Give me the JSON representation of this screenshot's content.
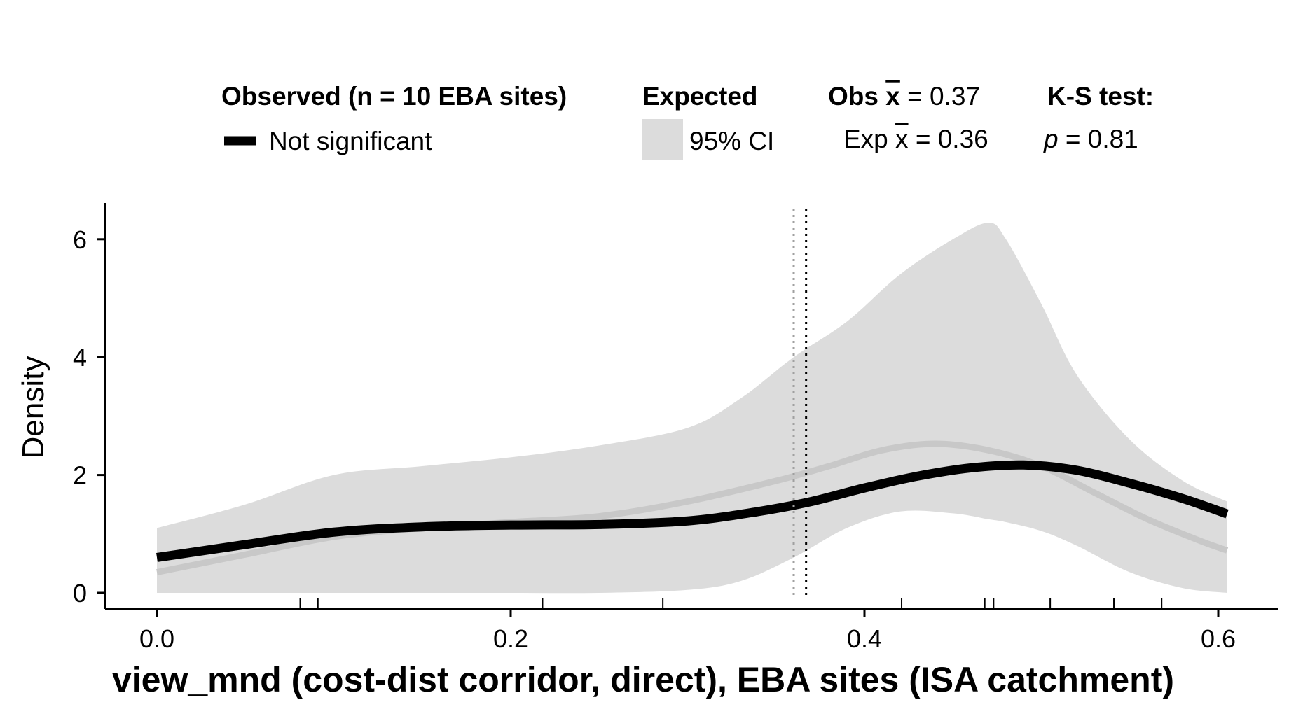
{
  "legend": {
    "observed_header": "Observed (n = 10 EBA sites)",
    "observed_item": "Not significant",
    "expected_header": "Expected",
    "expected_item": "95% CI",
    "obs_mean_prefix": "Obs ",
    "obs_mean_symbol": "x",
    "obs_mean_value": " = 0.37",
    "exp_mean_prefix": "Exp ",
    "exp_mean_symbol": "x",
    "exp_mean_value": " = 0.36",
    "ks_header": "K-S test:",
    "ks_p_symbol": "p",
    "ks_p_value": " = 0.81"
  },
  "colors": {
    "observed_line": "#000000",
    "expected_mean_line": "#c8c8c8",
    "ci_band": "#dcdcdc",
    "exp_mean_vline": "#a0a0a0",
    "obs_mean_vline": "#000000"
  },
  "chart_data": {
    "type": "line",
    "title": "",
    "xlabel": "view_mnd (cost-dist corridor, direct), EBA sites (ISA catchment)",
    "ylabel": "Density",
    "xlim": [
      -0.03,
      0.64
    ],
    "ylim": [
      -0.3,
      6.6
    ],
    "x_ticks": [
      0.0,
      0.2,
      0.4,
      0.6
    ],
    "x_tick_labels": [
      "0.0",
      "0.2",
      "0.4",
      "0.6"
    ],
    "y_ticks": [
      0,
      2,
      4,
      6
    ],
    "y_tick_labels": [
      "0",
      "2",
      "4",
      "6"
    ],
    "grid": false,
    "legend_position": "top",
    "rug": [
      0.081,
      0.091,
      0.218,
      0.286,
      0.421,
      0.468,
      0.473,
      0.505,
      0.541,
      0.568
    ],
    "vlines": [
      {
        "name": "Exp mean",
        "x": 0.36,
        "style": "dotted"
      },
      {
        "name": "Obs mean",
        "x": 0.367,
        "style": "dotted"
      }
    ],
    "series": [
      {
        "name": "Not significant",
        "role": "observed",
        "x": [
          0.0,
          0.05,
          0.1,
          0.15,
          0.2,
          0.25,
          0.3,
          0.34,
          0.37,
          0.4,
          0.43,
          0.46,
          0.49,
          0.52,
          0.55,
          0.58,
          0.605
        ],
        "y": [
          0.6,
          0.82,
          1.03,
          1.12,
          1.15,
          1.16,
          1.22,
          1.38,
          1.55,
          1.78,
          1.98,
          2.12,
          2.17,
          2.08,
          1.86,
          1.6,
          1.34
        ]
      },
      {
        "name": "Expected mean",
        "role": "expected",
        "x": [
          0.0,
          0.05,
          0.1,
          0.15,
          0.2,
          0.25,
          0.3,
          0.35,
          0.38,
          0.41,
          0.44,
          0.47,
          0.5,
          0.53,
          0.56,
          0.59,
          0.605
        ],
        "y": [
          0.35,
          0.65,
          0.95,
          1.1,
          1.2,
          1.3,
          1.55,
          1.9,
          2.15,
          2.42,
          2.53,
          2.42,
          2.15,
          1.7,
          1.25,
          0.88,
          0.72
        ]
      }
    ],
    "ci_band": {
      "name": "95% CI",
      "x": [
        0.0,
        0.05,
        0.1,
        0.15,
        0.2,
        0.25,
        0.3,
        0.33,
        0.36,
        0.39,
        0.42,
        0.45,
        0.47,
        0.48,
        0.5,
        0.52,
        0.55,
        0.58,
        0.605
      ],
      "upper": [
        1.1,
        1.5,
        2.0,
        2.15,
        2.3,
        2.5,
        2.8,
        3.3,
        4.0,
        4.6,
        5.4,
        6.0,
        6.28,
        6.0,
        4.9,
        3.7,
        2.6,
        1.9,
        1.55
      ],
      "lower": [
        0.0,
        0.0,
        0.0,
        0.0,
        0.0,
        0.0,
        0.05,
        0.2,
        0.6,
        1.1,
        1.38,
        1.35,
        1.25,
        1.2,
        1.05,
        0.8,
        0.35,
        0.08,
        0.0
      ]
    }
  }
}
